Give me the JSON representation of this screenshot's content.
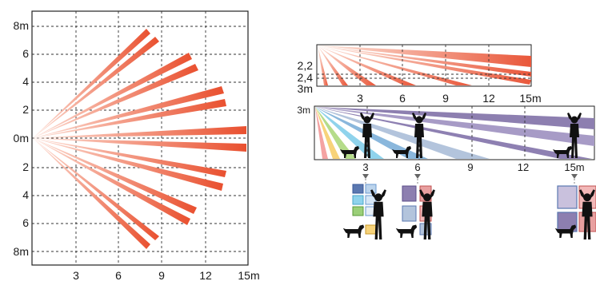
{
  "top_view": {
    "y_labels": [
      "8m",
      "6",
      "4",
      "2",
      "0m",
      "2",
      "4",
      "6",
      "8m"
    ],
    "x_labels": [
      "3",
      "6",
      "9",
      "12",
      "15m"
    ],
    "beam_colors": [
      "#f7b7a3",
      "#e9502f"
    ]
  },
  "side_view_top": {
    "y_labels": [
      "2,2",
      "2,4",
      "3m"
    ],
    "x_labels": [
      "3",
      "6",
      "9",
      "12",
      "15m"
    ]
  },
  "side_view_bottom": {
    "y_label": "3m",
    "x_labels": [
      "3",
      "6",
      "9",
      "12",
      "15m"
    ],
    "beam_colors": [
      "#f2a0a0",
      "#f7d37a",
      "#a9d47a",
      "#7ecbe6",
      "#9ebbd6",
      "#9a90b8",
      "#7d6ea3"
    ]
  },
  "figures": {
    "icons": [
      "person-icon",
      "dog-icon",
      "pixel-grid-icon"
    ]
  }
}
